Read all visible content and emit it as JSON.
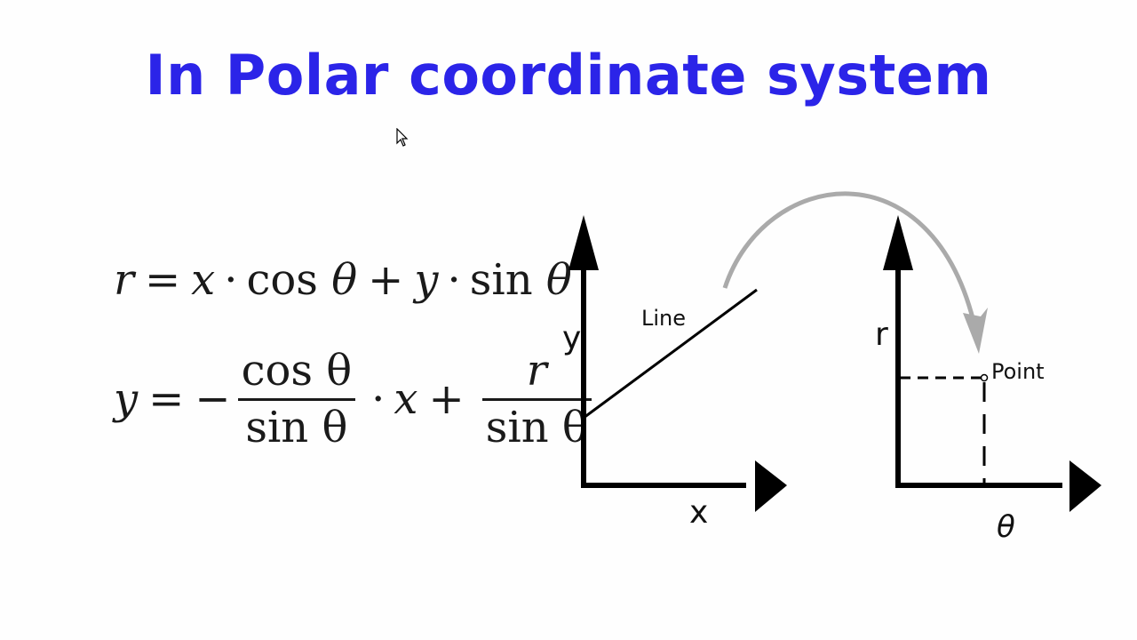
{
  "title": {
    "text": "In Polar coordinate system",
    "color": "#2b24e8"
  },
  "equations": {
    "eq1": {
      "lhs": "r",
      "eq": "=",
      "x": "x",
      "cos": "cos",
      "theta": "θ",
      "plus": "+",
      "y": "y",
      "sin": "sin",
      "dot": "·"
    },
    "eq2": {
      "lhs": "y",
      "eq": "=",
      "minus": "−",
      "num1": "cos θ",
      "den1": "sin θ",
      "x": "x",
      "plus": "+",
      "num2": "r",
      "den2": "sin θ",
      "dot": "·"
    }
  },
  "diagram": {
    "left_panel": {
      "y_label": "y",
      "x_label": "x",
      "line_label": "Line"
    },
    "right_panel": {
      "y_label": "r",
      "x_label": "θ",
      "point_label": "Point"
    },
    "arrow_color": "#aaaaaa"
  }
}
